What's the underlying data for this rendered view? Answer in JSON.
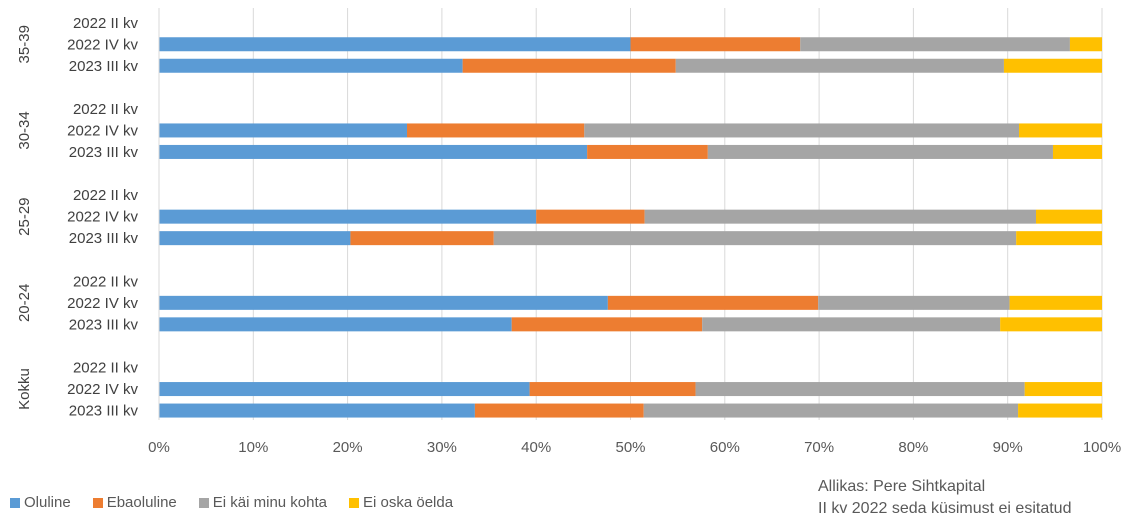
{
  "chart_data": {
    "type": "bar",
    "orientation": "horizontal",
    "stacked": "percent",
    "groups": [
      {
        "name": "35-39",
        "rows": [
          "2022 II kv",
          "2022 IV kv",
          "2023 III kv"
        ]
      },
      {
        "name": "30-34",
        "rows": [
          "2022 II kv",
          "2022 IV kv",
          "2023 III kv"
        ]
      },
      {
        "name": "25-29",
        "rows": [
          "2022 II kv",
          "2022 IV kv",
          "2023 III kv"
        ]
      },
      {
        "name": "20-24",
        "rows": [
          "2022 II kv",
          "2022 IV kv",
          "2023 III kv"
        ]
      },
      {
        "name": "Kokku",
        "rows": [
          "2022 II kv",
          "2022 IV kv",
          "2023 III kv"
        ]
      }
    ],
    "series": [
      {
        "name": "Oluline",
        "color": "#5B9BD5",
        "values": [
          [
            null,
            50,
            32.2
          ],
          [
            null,
            26.3,
            45.4
          ],
          [
            null,
            40,
            20.3
          ],
          [
            null,
            47.6,
            37.4
          ],
          [
            null,
            39.3,
            33.5
          ]
        ]
      },
      {
        "name": "Ebaoluline",
        "color": "#ED7D31",
        "values": [
          [
            null,
            18,
            22.6
          ],
          [
            null,
            18.8,
            12.8
          ],
          [
            null,
            11.5,
            15.2
          ],
          [
            null,
            22.3,
            20.2
          ],
          [
            null,
            17.6,
            17.9
          ]
        ]
      },
      {
        "name": "Ei käi minu kohta",
        "color": "#A5A5A5",
        "values": [
          [
            null,
            28.6,
            34.8
          ],
          [
            null,
            46.1,
            36.6
          ],
          [
            null,
            41.5,
            55.4
          ],
          [
            null,
            20.3,
            31.6
          ],
          [
            null,
            34.9,
            39.7
          ]
        ]
      },
      {
        "name": "Ei oska öelda",
        "color": "#FFC000",
        "values": [
          [
            null,
            3.4,
            10.4
          ],
          [
            null,
            8.8,
            5.2
          ],
          [
            null,
            7,
            9.1
          ],
          [
            null,
            9.8,
            10.8
          ],
          [
            null,
            8.2,
            8.9
          ]
        ]
      }
    ],
    "x_ticks": [
      "0%",
      "10%",
      "20%",
      "30%",
      "40%",
      "50%",
      "60%",
      "70%",
      "80%",
      "90%",
      "100%"
    ],
    "xlim": [
      0,
      100
    ],
    "grid": "vertical",
    "legend_position": "bottom-left"
  },
  "notes": {
    "source": "Allikas: Pere Sihtkapital",
    "footnote": "II kv 2022 seda küsimust ei esitatud"
  }
}
